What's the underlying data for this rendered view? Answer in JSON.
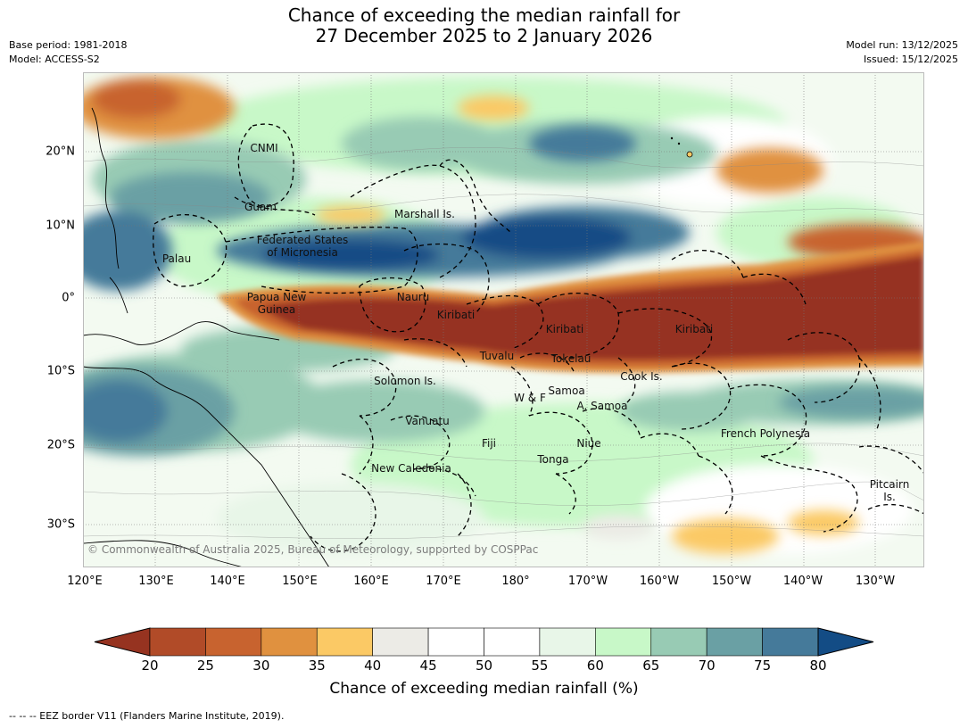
{
  "title_line1": "Chance of exceeding the median rainfall for",
  "title_line2": "27 December 2025 to 2 January 2026",
  "base_period": "Base period: 1981-2018",
  "model": "Model: ACCESS-S2",
  "model_run": "Model run: 13/12/2025",
  "issued": "Issued: 15/12/2025",
  "lon_labels": [
    "120°E",
    "130°E",
    "140°E",
    "150°E",
    "160°E",
    "170°E",
    "180°",
    "170°W",
    "160°W",
    "150°W",
    "140°W",
    "130°W"
  ],
  "lat_labels": [
    "20°N",
    "10°N",
    "0°",
    "10°S",
    "20°S",
    "30°S"
  ],
  "regions": {
    "cnmi": "CNMI",
    "guam": "Guam",
    "marshall": "Marshall Is.",
    "fsm_line1": "Federated States",
    "fsm_line2": "of Micronesia",
    "palau": "Palau",
    "png_line1": "Papua New",
    "png_line2": "Guinea",
    "nauru": "Nauru",
    "kiribati_w": "Kiribati",
    "kiribati_c": "Kiribati",
    "kiribati_e": "Kiribati",
    "tuvalu": "Tuvalu",
    "tokelau": "Tokelau",
    "cook": "Cook Is.",
    "solomon": "Solomon Is.",
    "wf": "W & F",
    "samoa": "Samoa",
    "asamoa": "A. Samoa",
    "vanuatu": "Vanuatu",
    "fiji": "Fiji",
    "niue": "Niue",
    "tonga": "Tonga",
    "frenchpoly": "French Polynesia",
    "newcal": "New Caledonia",
    "pitcairn_line1": "Pitcairn",
    "pitcairn_line2": "Is."
  },
  "copyright": "© Commonwealth of Australia 2025, Bureau of Meteorology, supported by COSPPac",
  "colorbar": {
    "ticks": [
      "20",
      "25",
      "30",
      "35",
      "40",
      "45",
      "50",
      "55",
      "60",
      "65",
      "70",
      "75",
      "80"
    ],
    "colors": [
      "#b14b28",
      "#c8632f",
      "#e0913f",
      "#fbc965",
      "#ecebe6",
      "#ffffff",
      "#ffffff",
      "#e8f6e8",
      "#c8f8c8",
      "#98cbb4",
      "#6aa0a4",
      "#457a9a"
    ],
    "under_color": "#963320",
    "over_color": "#134c85",
    "label": "Chance of exceeding median rainfall (%)"
  },
  "footnote": "--  --  -- EEZ border V11 (Flanders Marine Institute, 2019)."
}
